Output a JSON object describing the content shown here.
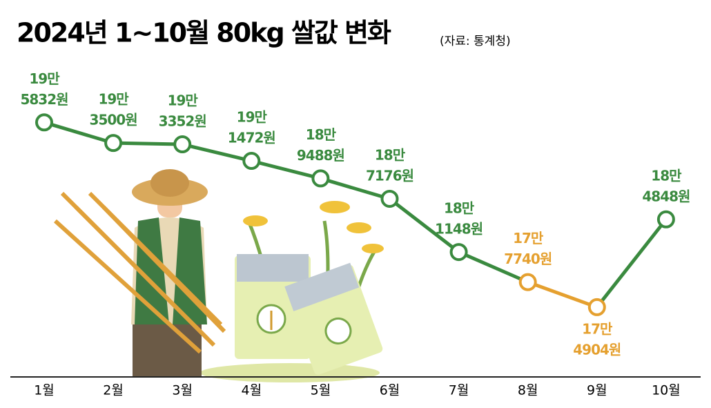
{
  "chart_data": {
    "type": "line",
    "title": "2024년 1~10월 80kg 쌀값 변화",
    "subtitle": "(자료: 통계청)",
    "categories": [
      "1월",
      "2월",
      "3월",
      "4월",
      "5월",
      "6월",
      "7월",
      "8월",
      "9월",
      "10월"
    ],
    "series": [
      {
        "values": [
          195832,
          193500,
          193352,
          191472,
          189488,
          187176,
          181148,
          177740,
          174904,
          184848
        ],
        "value_labels": [
          [
            "19만",
            "5832원"
          ],
          [
            "19만",
            "3500원"
          ],
          [
            "19만",
            "3352원"
          ],
          [
            "19만",
            "1472원"
          ],
          [
            "18만",
            "9488원"
          ],
          [
            "18만",
            "7176원"
          ],
          [
            "18만",
            "1148원"
          ],
          [
            "17만",
            "7740원"
          ],
          [
            "17만",
            "4904원"
          ],
          [
            "18만",
            "4848원"
          ]
        ],
        "colors": [
          "#3a8a3f",
          "#3a8a3f",
          "#3a8a3f",
          "#3a8a3f",
          "#3a8a3f",
          "#3a8a3f",
          "#3a8a3f",
          "#e5a02f",
          "#e5a02f",
          "#3a8a3f"
        ]
      }
    ],
    "ylim": [
      167000,
      200000
    ]
  }
}
